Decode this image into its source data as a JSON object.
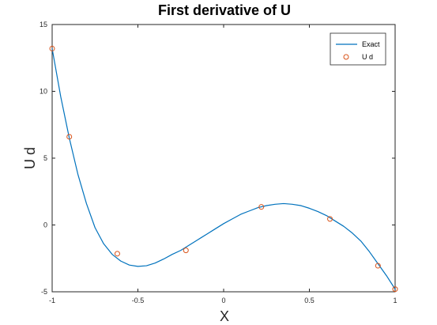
{
  "chart_data": {
    "type": "line",
    "title": "First derivative of U",
    "xlabel": "X",
    "ylabel": "U d",
    "xlim": [
      -1,
      1
    ],
    "ylim": [
      -5,
      15
    ],
    "xticks": [
      -1,
      -0.5,
      0,
      0.5,
      1
    ],
    "xtick_labels": [
      "-1",
      "-0.5",
      "0",
      "0.5",
      "1"
    ],
    "yticks": [
      -5,
      0,
      5,
      10,
      15
    ],
    "ytick_labels": [
      "-5",
      "0",
      "5",
      "10",
      "15"
    ],
    "grid": false,
    "legend_position": "top-right",
    "series": [
      {
        "name": "Exact",
        "style": "line",
        "color": "#0072BD",
        "x": [
          -1.0,
          -0.95,
          -0.9,
          -0.85,
          -0.8,
          -0.75,
          -0.7,
          -0.65,
          -0.6,
          -0.55,
          -0.5,
          -0.45,
          -0.4,
          -0.35,
          -0.3,
          -0.25,
          -0.2,
          -0.15,
          -0.1,
          -0.05,
          0.0,
          0.05,
          0.1,
          0.15,
          0.2,
          0.25,
          0.3,
          0.35,
          0.4,
          0.45,
          0.5,
          0.55,
          0.6,
          0.65,
          0.7,
          0.75,
          0.8,
          0.85,
          0.9,
          0.95,
          1.0
        ],
        "y": [
          13.2,
          9.6,
          6.5,
          3.8,
          1.6,
          -0.2,
          -1.4,
          -2.2,
          -2.7,
          -3.0,
          -3.1,
          -3.05,
          -2.85,
          -2.55,
          -2.2,
          -1.9,
          -1.5,
          -1.1,
          -0.7,
          -0.3,
          0.1,
          0.45,
          0.8,
          1.05,
          1.3,
          1.45,
          1.55,
          1.6,
          1.55,
          1.45,
          1.25,
          1.0,
          0.7,
          0.3,
          -0.1,
          -0.6,
          -1.2,
          -2.0,
          -2.9,
          -3.8,
          -4.8
        ]
      },
      {
        "name": "U d",
        "style": "markers",
        "color": "#D95319",
        "x": [
          -1.0,
          -0.9,
          -0.62,
          -0.22,
          0.22,
          0.62,
          0.9,
          1.0
        ],
        "y": [
          13.2,
          6.6,
          -2.15,
          -1.9,
          1.35,
          0.45,
          -3.05,
          -4.8
        ]
      }
    ]
  }
}
